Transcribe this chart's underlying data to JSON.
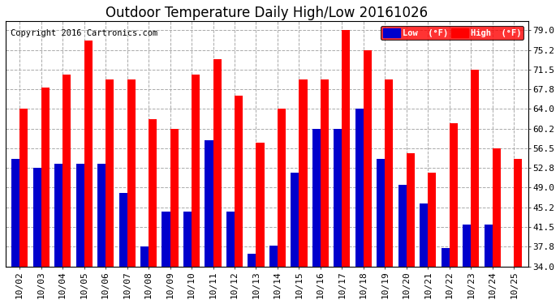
{
  "title": "Outdoor Temperature Daily High/Low 20161026",
  "copyright": "Copyright 2016 Cartronics.com",
  "legend_low": "Low  (°F)",
  "legend_high": "High  (°F)",
  "dates": [
    "10/02",
    "10/03",
    "10/04",
    "10/05",
    "10/06",
    "10/07",
    "10/08",
    "10/09",
    "10/10",
    "10/11",
    "10/12",
    "10/13",
    "10/14",
    "10/15",
    "10/16",
    "10/17",
    "10/18",
    "10/19",
    "10/20",
    "10/21",
    "10/22",
    "10/23",
    "10/24",
    "10/25"
  ],
  "high": [
    64.0,
    68.0,
    70.5,
    77.0,
    69.5,
    69.5,
    62.0,
    60.2,
    70.5,
    73.5,
    66.5,
    57.5,
    64.0,
    69.5,
    69.5,
    79.0,
    75.2,
    69.5,
    55.5,
    51.8,
    61.2,
    71.5,
    56.5,
    54.5
  ],
  "low": [
    54.5,
    52.8,
    53.5,
    53.5,
    53.5,
    48.0,
    37.8,
    44.5,
    44.5,
    58.0,
    44.5,
    36.5,
    38.0,
    51.8,
    60.2,
    60.2,
    64.0,
    54.5,
    49.5,
    46.0,
    37.5,
    42.0,
    42.0,
    34.0
  ],
  "ylim_min": 34.0,
  "ylim_max": 80.6,
  "yticks": [
    34.0,
    37.8,
    41.5,
    45.2,
    49.0,
    52.8,
    56.5,
    60.2,
    64.0,
    67.8,
    71.5,
    75.2,
    79.0
  ],
  "ytick_labels": [
    "34.0",
    "37.8",
    "41.5",
    "45.2",
    "49.0",
    "52.8",
    "56.5",
    "60.2",
    "64.0",
    "67.8",
    "71.5",
    "75.2",
    "79.0"
  ],
  "bar_width": 0.38,
  "high_color": "#ff0000",
  "low_color": "#0000cc",
  "background_color": "#ffffff",
  "plot_bg_color": "#ffffff",
  "title_fontsize": 12,
  "tick_fontsize": 8,
  "copyright_fontsize": 7.5
}
